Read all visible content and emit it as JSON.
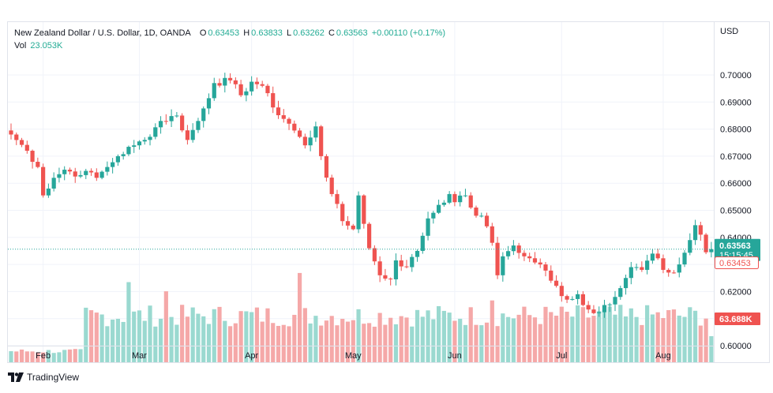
{
  "legend": {
    "symbol": "New Zealand Dollar / U.S. Dollar, 1D, OANDA",
    "o_label": "O",
    "o_value": "0.63453",
    "h_label": "H",
    "h_value": "0.63833",
    "l_label": "L",
    "l_value": "0.63262",
    "c_label": "C",
    "c_value": "0.63563",
    "change": "+0.00110 (+0.17%)",
    "vol_label": "Vol",
    "vol_value": "23.053K"
  },
  "currency": "USD",
  "price_labels": {
    "last_price": "0.63563",
    "countdown": "15:15:45",
    "open_price": "0.63453",
    "volume_ma": "63.688K"
  },
  "footer": {
    "brand": "TradingView"
  },
  "colors": {
    "up": "#26a69a",
    "down": "#ef5350",
    "vol_up": "#9ad9d0",
    "vol_down": "#f5a8a8",
    "grid": "#f0f3fa",
    "last_line": "#26a69a"
  },
  "chart_data": {
    "type": "candlestick",
    "title": "New Zealand Dollar / U.S. Dollar, 1D, OANDA",
    "y_ticks": [
      "0.70000",
      "0.69000",
      "0.68000",
      "0.67000",
      "0.66000",
      "0.65000",
      "0.64000",
      "0.63000",
      "0.62000",
      "0.61000",
      "0.60000"
    ],
    "y_tick_values": [
      0.7,
      0.69,
      0.68,
      0.67,
      0.66,
      0.65,
      0.64,
      0.63,
      0.62,
      0.61,
      0.6
    ],
    "ylim": [
      0.5985,
      0.705
    ],
    "x_ticks": [
      "Feb",
      "Mar",
      "Apr",
      "May",
      "Jun",
      "Jul",
      "Aug"
    ],
    "x_tick_index": [
      6,
      24,
      45,
      64,
      83,
      103,
      122
    ],
    "close_anchors": [
      [
        0,
        0.678
      ],
      [
        3,
        0.672
      ],
      [
        5,
        0.666
      ],
      [
        6,
        0.6555
      ],
      [
        8,
        0.662
      ],
      [
        10,
        0.665
      ],
      [
        13,
        0.663
      ],
      [
        15,
        0.664
      ],
      [
        16,
        0.662
      ],
      [
        18,
        0.666
      ],
      [
        20,
        0.67
      ],
      [
        23,
        0.674
      ],
      [
        25,
        0.676
      ],
      [
        28,
        0.683
      ],
      [
        31,
        0.685
      ],
      [
        33,
        0.676
      ],
      [
        35,
        0.683
      ],
      [
        38,
        0.697
      ],
      [
        41,
        0.698
      ],
      [
        43,
        0.6925
      ],
      [
        45,
        0.6975
      ],
      [
        47,
        0.696
      ],
      [
        49,
        0.688
      ],
      [
        52,
        0.682
      ],
      [
        55,
        0.674
      ],
      [
        57,
        0.681
      ],
      [
        58,
        0.67
      ],
      [
        60,
        0.656
      ],
      [
        62,
        0.646
      ],
      [
        64,
        0.643
      ],
      [
        65,
        0.6555
      ],
      [
        67,
        0.636
      ],
      [
        69,
        0.626
      ],
      [
        71,
        0.6245
      ],
      [
        72,
        0.6315
      ],
      [
        74,
        0.629
      ],
      [
        76,
        0.635
      ],
      [
        78,
        0.647
      ],
      [
        80,
        0.652
      ],
      [
        82,
        0.656
      ],
      [
        83,
        0.653
      ],
      [
        85,
        0.6555
      ],
      [
        87,
        0.648
      ],
      [
        88,
        0.648
      ],
      [
        90,
        0.638
      ],
      [
        91,
        0.626
      ],
      [
        92,
        0.633
      ],
      [
        94,
        0.637
      ],
      [
        96,
        0.633
      ],
      [
        99,
        0.63
      ],
      [
        101,
        0.624
      ],
      [
        104,
        0.617
      ],
      [
        106,
        0.619
      ],
      [
        107,
        0.615
      ],
      [
        109,
        0.612
      ],
      [
        111,
        0.615
      ],
      [
        113,
        0.618
      ],
      [
        115,
        0.625
      ],
      [
        116,
        0.629
      ],
      [
        118,
        0.628
      ],
      [
        120,
        0.634
      ],
      [
        122,
        0.628
      ],
      [
        124,
        0.627
      ],
      [
        125,
        0.63
      ],
      [
        127,
        0.639
      ],
      [
        128,
        0.6445
      ],
      [
        129,
        0.641
      ],
      [
        130,
        0.6345
      ],
      [
        131,
        0.6356
      ]
    ],
    "open_last": 0.63453,
    "close_last": 0.63563,
    "high_last": 0.63833,
    "low_last": 0.63262,
    "volume_note": "Volume bars shown at bottom; last value 23.053K, MA 63.688K"
  }
}
